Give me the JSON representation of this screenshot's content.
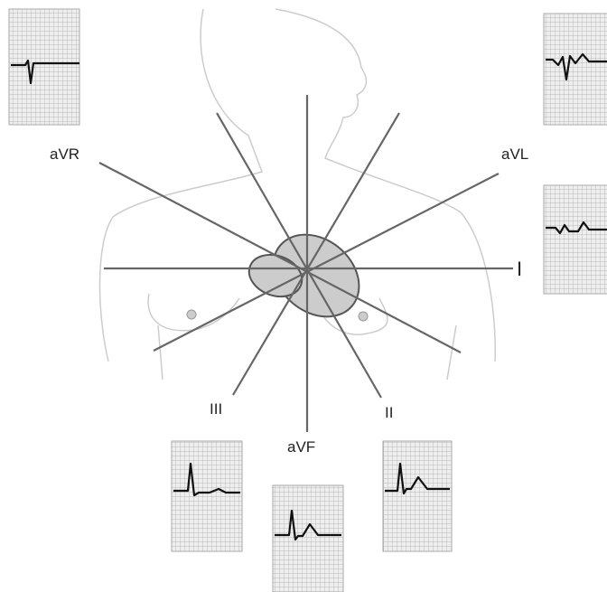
{
  "leads": {
    "avr": "aVR",
    "avl": "aVL",
    "i": "I",
    "iii": "III",
    "avf": "aVF",
    "ii": "II"
  }
}
